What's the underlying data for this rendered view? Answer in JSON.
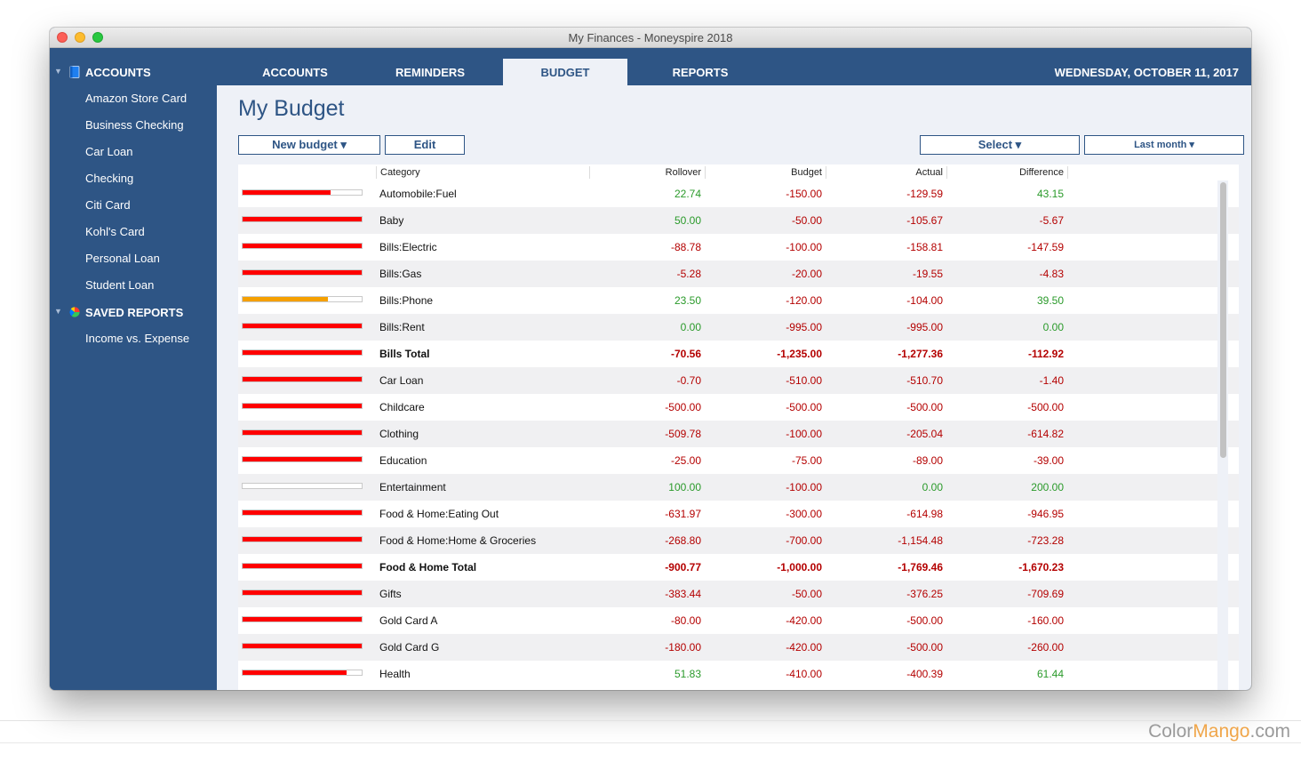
{
  "window": {
    "title": "My Finances - Moneyspire 2018"
  },
  "sidebar": {
    "accounts_header": "ACCOUNTS",
    "accounts": [
      "Amazon Store Card",
      "Business Checking",
      "Car Loan",
      "Checking",
      "Citi Card",
      "Kohl's Card",
      "Personal Loan",
      "Student Loan"
    ],
    "reports_header": "SAVED REPORTS",
    "reports": [
      "Income vs. Expense"
    ]
  },
  "tabs": [
    "ACCOUNTS",
    "REMINDERS",
    "BUDGET",
    "REPORTS"
  ],
  "active_tab": "BUDGET",
  "date": "WEDNESDAY, OCTOBER 11, 2017",
  "main": {
    "title": "My Budget",
    "new_budget_label": "New budget ▾",
    "edit_label": "Edit",
    "select_label": "Select ▾",
    "period_label": "Last month ▾"
  },
  "table": {
    "headers": {
      "category": "Category",
      "rollover": "Rollover",
      "budget": "Budget",
      "actual": "Actual",
      "difference": "Difference"
    },
    "rows": [
      {
        "category": "Automobile:Fuel",
        "rollover": "22.74",
        "budget": "-150.00",
        "actual": "-129.59",
        "difference": "43.15",
        "progress": 0.74,
        "bar_color": "#ff0000",
        "total": false
      },
      {
        "category": "Baby",
        "rollover": "50.00",
        "budget": "-50.00",
        "actual": "-105.67",
        "difference": "-5.67",
        "progress": 1.0,
        "bar_color": "#ff0000",
        "total": false
      },
      {
        "category": "Bills:Electric",
        "rollover": "-88.78",
        "budget": "-100.00",
        "actual": "-158.81",
        "difference": "-147.59",
        "progress": 1.0,
        "bar_color": "#ff0000",
        "total": false
      },
      {
        "category": "Bills:Gas",
        "rollover": "-5.28",
        "budget": "-20.00",
        "actual": "-19.55",
        "difference": "-4.83",
        "progress": 1.0,
        "bar_color": "#ff0000",
        "total": false
      },
      {
        "category": "Bills:Phone",
        "rollover": "23.50",
        "budget": "-120.00",
        "actual": "-104.00",
        "difference": "39.50",
        "progress": 0.72,
        "bar_color": "#f5a000",
        "total": false
      },
      {
        "category": "Bills:Rent",
        "rollover": "0.00",
        "budget": "-995.00",
        "actual": "-995.00",
        "difference": "0.00",
        "progress": 1.0,
        "bar_color": "#ff0000",
        "total": false
      },
      {
        "category": "Bills Total",
        "rollover": "-70.56",
        "budget": "-1,235.00",
        "actual": "-1,277.36",
        "difference": "-112.92",
        "progress": 1.0,
        "bar_color": "#ff0000",
        "total": true
      },
      {
        "category": "Car Loan",
        "rollover": "-0.70",
        "budget": "-510.00",
        "actual": "-510.70",
        "difference": "-1.40",
        "progress": 1.0,
        "bar_color": "#ff0000",
        "total": false
      },
      {
        "category": "Childcare",
        "rollover": "-500.00",
        "budget": "-500.00",
        "actual": "-500.00",
        "difference": "-500.00",
        "progress": 1.0,
        "bar_color": "#ff0000",
        "total": false
      },
      {
        "category": "Clothing",
        "rollover": "-509.78",
        "budget": "-100.00",
        "actual": "-205.04",
        "difference": "-614.82",
        "progress": 1.0,
        "bar_color": "#ff0000",
        "total": false
      },
      {
        "category": "Education",
        "rollover": "-25.00",
        "budget": "-75.00",
        "actual": "-89.00",
        "difference": "-39.00",
        "progress": 1.0,
        "bar_color": "#ff0000",
        "total": false
      },
      {
        "category": "Entertainment",
        "rollover": "100.00",
        "budget": "-100.00",
        "actual": "0.00",
        "difference": "200.00",
        "progress": 0.0,
        "bar_color": "#ff0000",
        "total": false
      },
      {
        "category": "Food & Home:Eating Out",
        "rollover": "-631.97",
        "budget": "-300.00",
        "actual": "-614.98",
        "difference": "-946.95",
        "progress": 1.0,
        "bar_color": "#ff0000",
        "total": false
      },
      {
        "category": "Food & Home:Home & Groceries",
        "rollover": "-268.80",
        "budget": "-700.00",
        "actual": "-1,154.48",
        "difference": "-723.28",
        "progress": 1.0,
        "bar_color": "#ff0000",
        "total": false
      },
      {
        "category": "Food & Home Total",
        "rollover": "-900.77",
        "budget": "-1,000.00",
        "actual": "-1,769.46",
        "difference": "-1,670.23",
        "progress": 1.0,
        "bar_color": "#ff0000",
        "total": true
      },
      {
        "category": "Gifts",
        "rollover": "-383.44",
        "budget": "-50.00",
        "actual": "-376.25",
        "difference": "-709.69",
        "progress": 1.0,
        "bar_color": "#ff0000",
        "total": false
      },
      {
        "category": "Gold Card A",
        "rollover": "-80.00",
        "budget": "-420.00",
        "actual": "-500.00",
        "difference": "-160.00",
        "progress": 1.0,
        "bar_color": "#ff0000",
        "total": false
      },
      {
        "category": "Gold Card G",
        "rollover": "-180.00",
        "budget": "-420.00",
        "actual": "-500.00",
        "difference": "-260.00",
        "progress": 1.0,
        "bar_color": "#ff0000",
        "total": false
      },
      {
        "category": "Health",
        "rollover": "51.83",
        "budget": "-410.00",
        "actual": "-400.39",
        "difference": "61.44",
        "progress": 0.87,
        "bar_color": "#ff0000",
        "total": false
      }
    ]
  },
  "watermark": {
    "part1": "Color",
    "part2": "Mango",
    "part3": ".com"
  },
  "colors": {
    "sidebar": "#2e5585",
    "content": "#eef1f7",
    "positive": "#2a9a2a",
    "negative": "#b40000"
  }
}
